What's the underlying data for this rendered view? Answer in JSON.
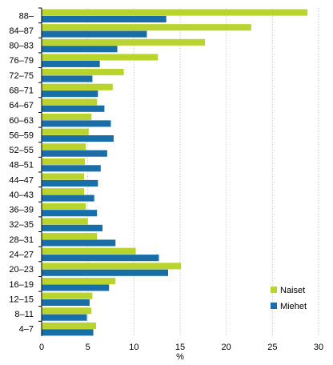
{
  "chart_data": {
    "type": "bar",
    "orientation": "horizontal",
    "categories": [
      "88–",
      "84–87",
      "80–83",
      "76–79",
      "72–75",
      "68–71",
      "64–67",
      "60–63",
      "56–59",
      "52–55",
      "48–51",
      "44–47",
      "40–43",
      "36–39",
      "32–35",
      "28–31",
      "24–27",
      "20–23",
      "16–19",
      "12–15",
      "8–11",
      "4–7"
    ],
    "series": [
      {
        "name": "Naiset",
        "color": "#b9d32f",
        "values": [
          28.8,
          22.7,
          17.7,
          12.6,
          8.9,
          7.7,
          6.0,
          5.4,
          5.1,
          4.8,
          4.7,
          4.6,
          4.6,
          4.8,
          5.0,
          6.0,
          10.2,
          15.1,
          8.0,
          5.5,
          5.4,
          5.9
        ]
      },
      {
        "name": "Miehet",
        "color": "#1a6ea8",
        "values": [
          13.5,
          11.4,
          8.2,
          6.3,
          5.5,
          6.1,
          6.8,
          7.5,
          7.8,
          7.1,
          6.4,
          6.1,
          5.7,
          6.0,
          6.6,
          8.0,
          12.7,
          13.7,
          7.3,
          5.2,
          4.9,
          5.6
        ]
      }
    ],
    "xlabel": "%",
    "ylabel": "",
    "xlim": [
      0,
      30
    ],
    "xticks": [
      "0",
      "5",
      "10",
      "15",
      "20",
      "25",
      "30"
    ],
    "grid": true,
    "legend": "bottom-right"
  }
}
